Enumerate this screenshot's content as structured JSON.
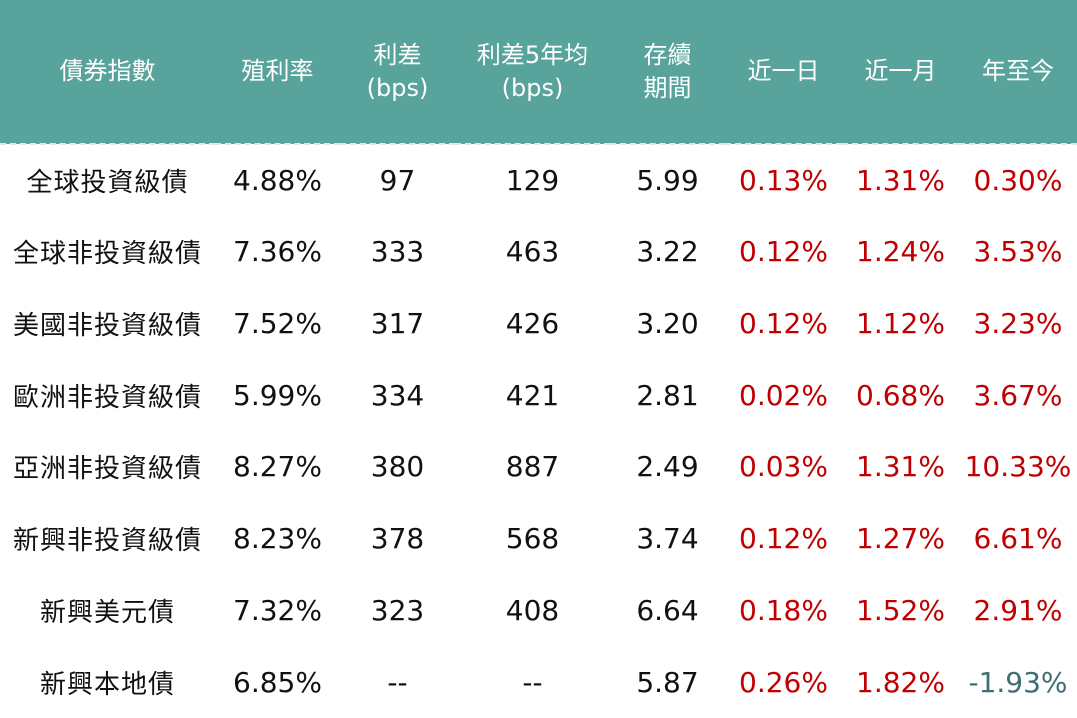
{
  "colors": {
    "header_bg": "#58A39B",
    "header_text": "#FFFFFF",
    "data_text": "#111111",
    "change_positive": "#C00000",
    "change_negative": "#3E6E74",
    "background": "#FFFFFF"
  },
  "chart_data": {
    "type": "table",
    "title": "",
    "columns": [
      {
        "key": "name",
        "label": "債券指數"
      },
      {
        "key": "yield",
        "label": "殖利率"
      },
      {
        "key": "spread",
        "label": "利差\n(bps)"
      },
      {
        "key": "spread5y",
        "label": "利差5年均\n(bps)"
      },
      {
        "key": "duration",
        "label": "存續\n期間"
      },
      {
        "key": "d1",
        "label": "近一日"
      },
      {
        "key": "m1",
        "label": "近一月"
      },
      {
        "key": "ytd",
        "label": "年至今"
      }
    ],
    "rows": [
      {
        "name": "全球投資級債",
        "yield": "4.88%",
        "spread": "97",
        "spread5y": "129",
        "duration": "5.99",
        "d1": "0.13%",
        "m1": "1.31%",
        "ytd": "0.30%"
      },
      {
        "name": "全球非投資級債",
        "yield": "7.36%",
        "spread": "333",
        "spread5y": "463",
        "duration": "3.22",
        "d1": "0.12%",
        "m1": "1.24%",
        "ytd": "3.53%"
      },
      {
        "name": "美國非投資級債",
        "yield": "7.52%",
        "spread": "317",
        "spread5y": "426",
        "duration": "3.20",
        "d1": "0.12%",
        "m1": "1.12%",
        "ytd": "3.23%"
      },
      {
        "name": "歐洲非投資級債",
        "yield": "5.99%",
        "spread": "334",
        "spread5y": "421",
        "duration": "2.81",
        "d1": "0.02%",
        "m1": "0.68%",
        "ytd": "3.67%"
      },
      {
        "name": "亞洲非投資級債",
        "yield": "8.27%",
        "spread": "380",
        "spread5y": "887",
        "duration": "2.49",
        "d1": "0.03%",
        "m1": "1.31%",
        "ytd": "10.33%"
      },
      {
        "name": "新興非投資級債",
        "yield": "8.23%",
        "spread": "378",
        "spread5y": "568",
        "duration": "3.74",
        "d1": "0.12%",
        "m1": "1.27%",
        "ytd": "6.61%"
      },
      {
        "name": "新興美元債",
        "yield": "7.32%",
        "spread": "323",
        "spread5y": "408",
        "duration": "6.64",
        "d1": "0.18%",
        "m1": "1.52%",
        "ytd": "2.91%"
      },
      {
        "name": "新興本地債",
        "yield": "6.85%",
        "spread": "--",
        "spread5y": "--",
        "duration": "5.87",
        "d1": "0.26%",
        "m1": "1.82%",
        "ytd": "-1.93%"
      }
    ]
  }
}
